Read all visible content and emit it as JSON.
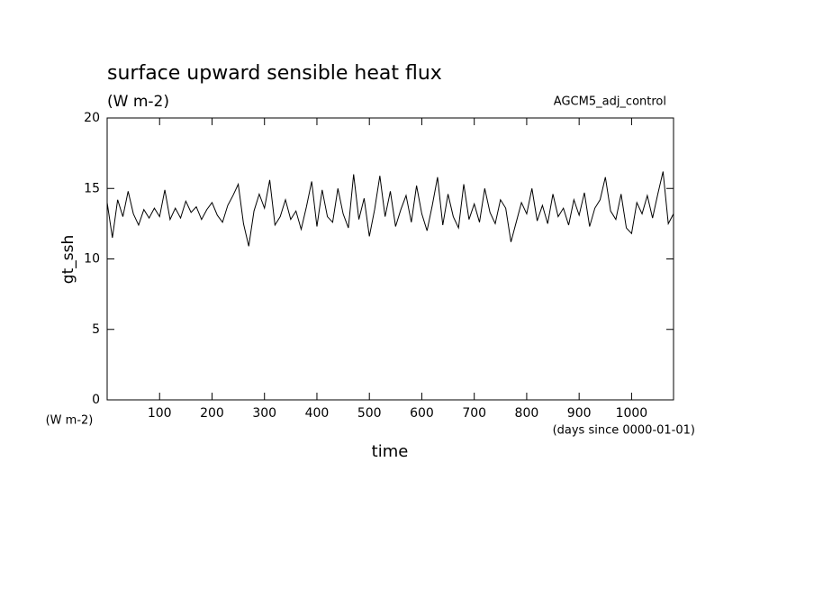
{
  "chart_data": {
    "type": "line",
    "title": "surface upward sensible heat flux",
    "subtitle": "(W m-2)",
    "annotation": "AGCM5_adj_control",
    "ylabel": "gt_ssh",
    "yunits": "(W m-2)",
    "xlabel": "time",
    "xunits": "(days since 0000-01-01)",
    "x": [
      0,
      10,
      20,
      30,
      40,
      50,
      60,
      70,
      80,
      90,
      100,
      110,
      120,
      130,
      140,
      150,
      160,
      170,
      180,
      190,
      200,
      210,
      220,
      230,
      240,
      250,
      260,
      270,
      280,
      290,
      300,
      310,
      320,
      330,
      340,
      350,
      360,
      370,
      380,
      390,
      400,
      410,
      420,
      430,
      440,
      450,
      460,
      470,
      480,
      490,
      500,
      510,
      520,
      530,
      540,
      550,
      560,
      570,
      580,
      590,
      600,
      610,
      620,
      630,
      640,
      650,
      660,
      670,
      680,
      690,
      700,
      710,
      720,
      730,
      740,
      750,
      760,
      770,
      780,
      790,
      800,
      810,
      820,
      830,
      840,
      850,
      860,
      870,
      880,
      890,
      900,
      910,
      920,
      930,
      940,
      950,
      960,
      970,
      980,
      990,
      1000,
      1010,
      1020,
      1030,
      1040,
      1050,
      1060,
      1070,
      1080
    ],
    "series": [
      {
        "color": "#000000",
        "values": [
          14.0,
          11.5,
          14.2,
          13.0,
          14.8,
          13.2,
          12.4,
          13.5,
          12.9,
          13.6,
          13.0,
          14.9,
          12.8,
          13.6,
          12.9,
          14.1,
          13.3,
          13.7,
          12.8,
          13.5,
          14.0,
          13.1,
          12.6,
          13.8,
          14.5,
          15.3,
          12.5,
          10.9,
          13.4,
          14.6,
          13.6,
          15.6,
          12.4,
          13.0,
          14.2,
          12.8,
          13.4,
          12.1,
          13.7,
          15.5,
          12.3,
          14.9,
          13.0,
          12.6,
          15.0,
          13.2,
          12.2,
          16.0,
          12.8,
          14.3,
          11.6,
          13.5,
          15.9,
          13.0,
          14.8,
          12.3,
          13.5,
          14.5,
          12.6,
          15.2,
          13.2,
          12.0,
          13.8,
          15.8,
          12.4,
          14.6,
          13.0,
          12.2,
          15.3,
          12.8,
          13.9,
          12.6,
          15.0,
          13.3,
          12.5,
          14.2,
          13.6,
          11.2,
          12.6,
          14.0,
          13.2,
          15.0,
          12.7,
          13.8,
          12.5,
          14.6,
          13.0,
          13.6,
          12.4,
          14.2,
          13.1,
          14.7,
          12.3,
          13.6,
          14.2,
          15.8,
          13.4,
          12.8,
          14.6,
          12.2,
          11.8,
          14.0,
          13.2,
          14.5,
          12.9,
          14.6,
          16.2,
          12.5,
          13.2
        ]
      }
    ],
    "xlim": [
      0,
      1080
    ],
    "xticks": [
      100,
      200,
      300,
      400,
      500,
      600,
      700,
      800,
      900,
      1000
    ],
    "ylim": [
      0,
      20
    ],
    "yticks": [
      0,
      5,
      10,
      15,
      20
    ],
    "grid": false
  }
}
